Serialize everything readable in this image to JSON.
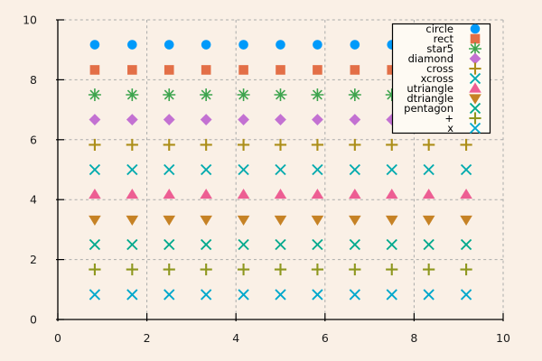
{
  "chart_data": {
    "type": "scatter",
    "title": "",
    "xlabel": "",
    "ylabel": "",
    "xlim": [
      0,
      10
    ],
    "ylim": [
      0,
      10
    ],
    "xticks": [
      0,
      2,
      4,
      6,
      8,
      10
    ],
    "yticks": [
      0,
      2,
      4,
      6,
      8,
      10
    ],
    "grid": "dashed",
    "background_color": "#FAF0E6",
    "grid_color": "#ABABAB",
    "axis_color": "#000000",
    "tick_label_color": "#1A1A1A",
    "x": [
      0.83,
      1.67,
      2.5,
      3.33,
      4.17,
      5.0,
      5.83,
      6.67,
      7.5,
      8.33,
      9.17
    ],
    "series": [
      {
        "label": "circle",
        "glyph": "circle",
        "color": "#009AFA",
        "y": 9.17
      },
      {
        "label": "rect",
        "glyph": "rect",
        "color": "#E36F47",
        "y": 8.33
      },
      {
        "label": "star5",
        "glyph": "star5",
        "color": "#3EA44E",
        "y": 7.5
      },
      {
        "label": "diamond",
        "glyph": "diamond",
        "color": "#C371D2",
        "y": 6.67
      },
      {
        "label": "cross",
        "glyph": "cross",
        "color": "#AC8E18",
        "y": 5.83
      },
      {
        "label": "xcross",
        "glyph": "xcross",
        "color": "#00AAAE",
        "y": 5.0
      },
      {
        "label": "utriangle",
        "glyph": "utriangle",
        "color": "#ED5E93",
        "y": 4.17
      },
      {
        "label": "dtriangle",
        "glyph": "dtriangle",
        "color": "#C68225",
        "y": 3.33
      },
      {
        "label": "pentagon",
        "glyph": "xcross",
        "color": "#00A98D",
        "y": 2.5
      },
      {
        "label": "+",
        "glyph": "cross",
        "color": "#8E971E",
        "y": 1.67
      },
      {
        "label": "x",
        "glyph": "xcross",
        "color": "#00A8CC",
        "y": 0.83
      }
    ],
    "legend": {
      "position": "top-right",
      "background": "#FEFAF3",
      "border_color": "#000000",
      "text_color": "#000000"
    }
  }
}
